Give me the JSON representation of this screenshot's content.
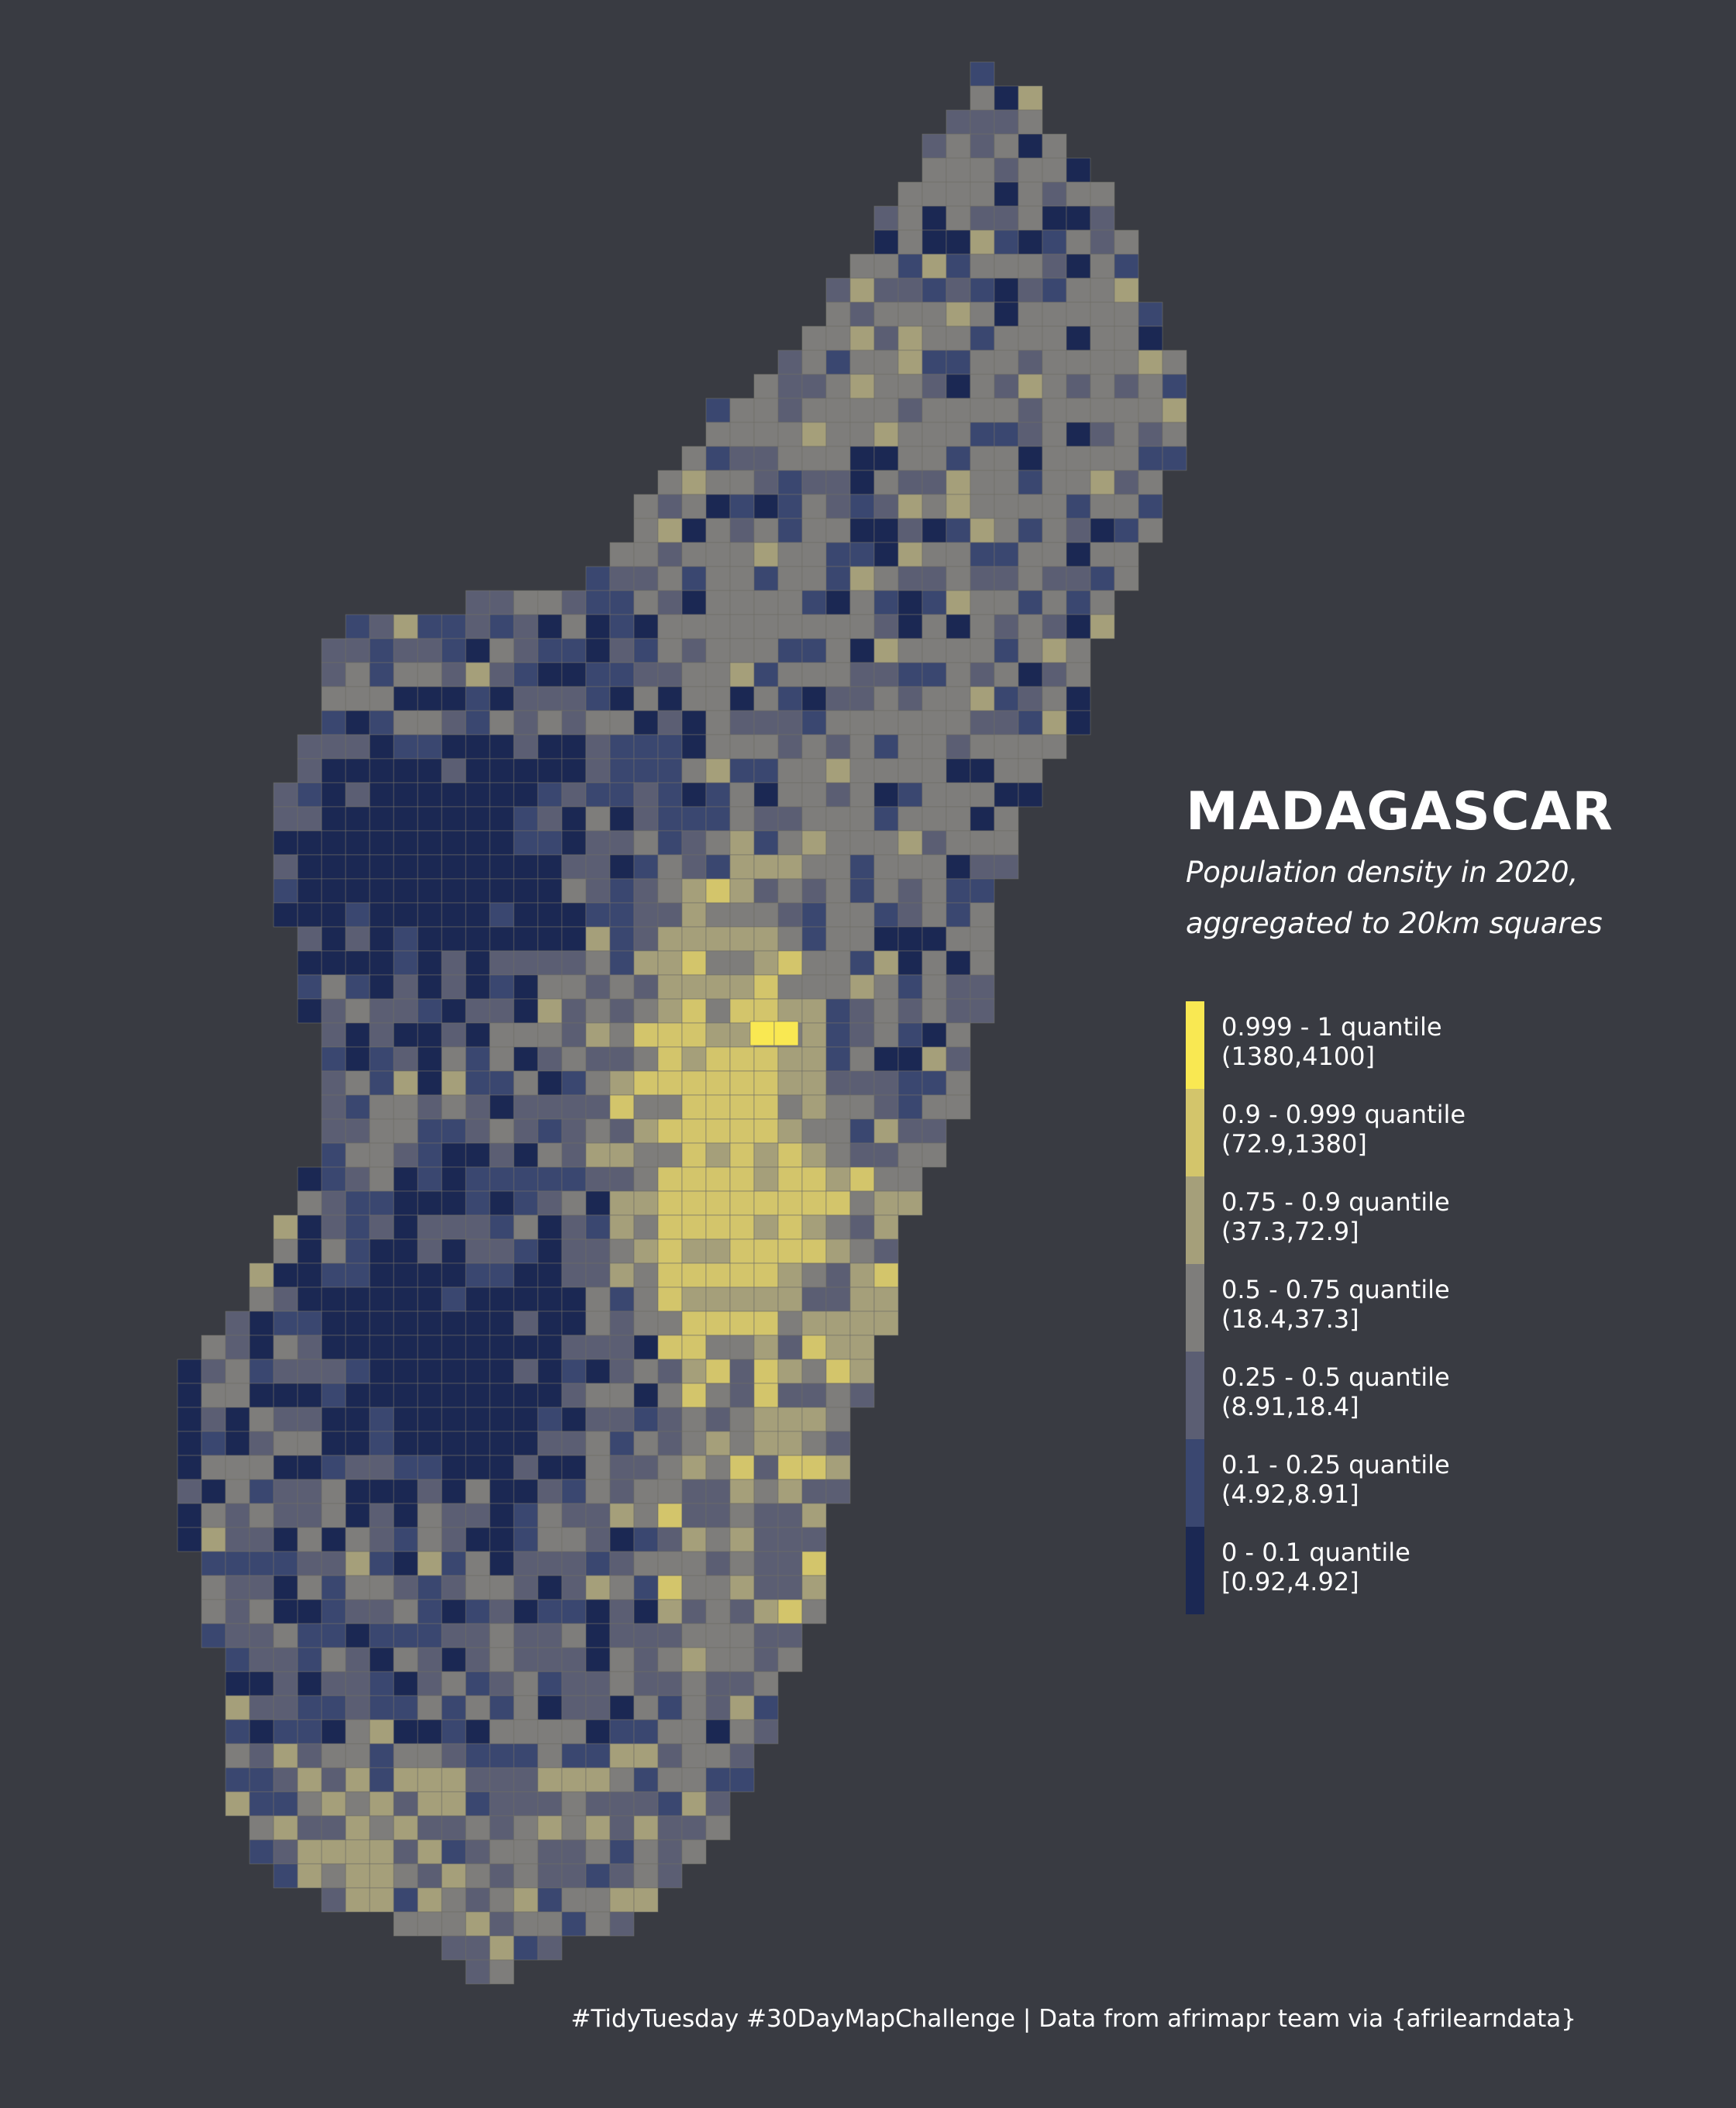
{
  "title": "MADAGASCAR",
  "subtitle": [
    "Population density in 2020,",
    "aggregated to 20km squares"
  ],
  "legend": [
    {
      "label": "0.999 - 1 quantile",
      "range": "(1380,4100]",
      "color": "#f9e852"
    },
    {
      "label": "0.9 - 0.999 quantile",
      "range": "(72.9,1380]",
      "color": "#d3c56b"
    },
    {
      "label": "0.75 - 0.9 quantile",
      "range": "(37.3,72.9]",
      "color": "#a59f7a"
    },
    {
      "label": "0.5 - 0.75 quantile",
      "range": "(18.4,37.3]",
      "color": "#7e7d7b"
    },
    {
      "label": "0.25 - 0.5 quantile",
      "range": "(8.91,18.4]",
      "color": "#5b5e73"
    },
    {
      "label": "0.1 - 0.25 quantile",
      "range": "(4.92,8.91]",
      "color": "#3a4770"
    },
    {
      "label": "0 - 0.1 quantile",
      "range": "[0.92,4.92]",
      "color": "#1b2853"
    }
  ],
  "caption": "#TidyTuesday #30DayMapChallenge | Data from afrimapr team via {afrilearndata}",
  "colors": {
    "background": "#393b42",
    "grid_line": "#6e6d66"
  }
}
